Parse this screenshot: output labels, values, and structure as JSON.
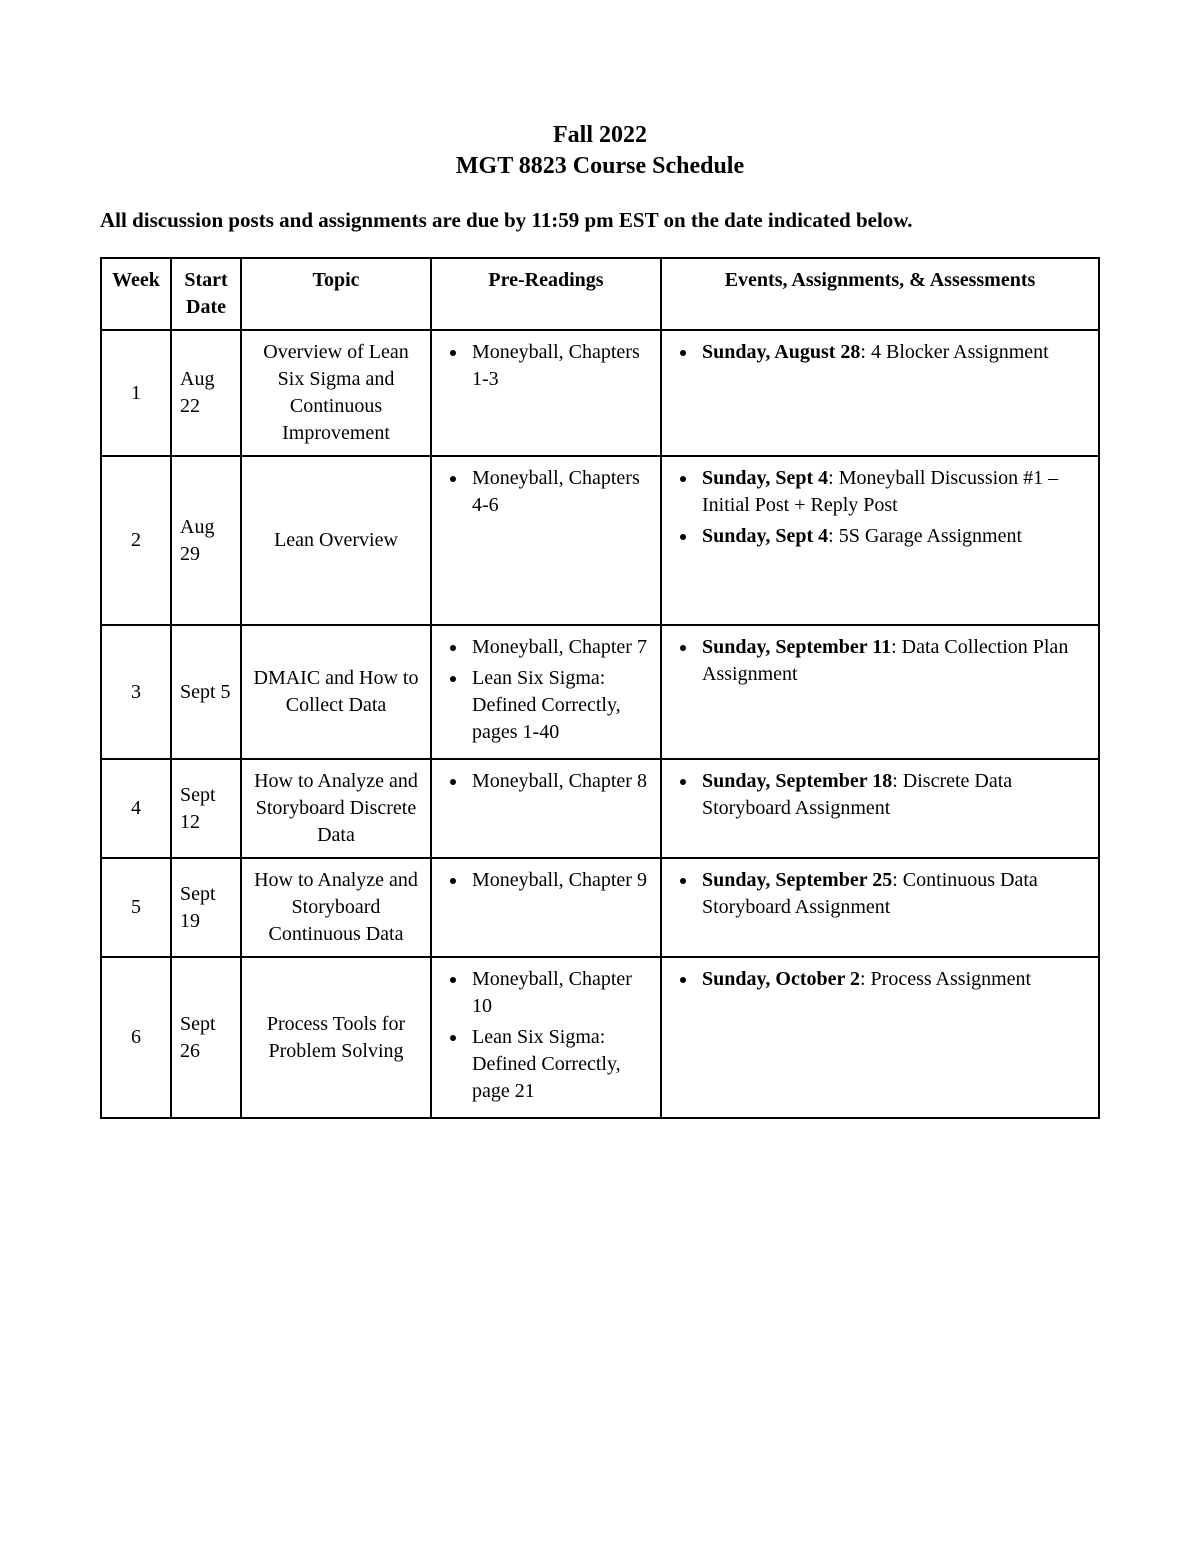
{
  "header": {
    "line1": "Fall 2022",
    "line2": "MGT 8823 Course Schedule"
  },
  "subtitle": "All discussion posts and assignments are due by 11:59 pm EST on the date indicated below.",
  "table": {
    "columns": [
      "Week",
      "Start Date",
      "Topic",
      "Pre-Readings",
      "Events, Assignments, & Assessments"
    ],
    "rows": [
      {
        "week": "1",
        "date": "Aug 22",
        "topic": "Overview of Lean Six Sigma and Continuous Improvement",
        "readings": [
          "Moneyball, Chapters 1-3"
        ],
        "events": [
          {
            "bold": "Sunday, August 28",
            "rest": ":  4 Blocker Assignment"
          }
        ]
      },
      {
        "week": "2",
        "date": "Aug 29",
        "topic": "Lean Overview",
        "readings": [
          "Moneyball, Chapters 4-6"
        ],
        "events": [
          {
            "bold": "Sunday, Sept 4",
            "rest": ":  Moneyball Discussion #1 – Initial Post + Reply Post"
          },
          {
            "bold": "Sunday, Sept 4",
            "rest": ":  5S Garage Assignment"
          }
        ],
        "extra_padding": true
      },
      {
        "week": "3",
        "date": "Sept 5",
        "topic": "DMAIC and How to Collect Data",
        "readings": [
          "Moneyball, Chapter 7",
          "Lean Six Sigma: Defined Correctly, pages 1-40"
        ],
        "events": [
          {
            "bold": "Sunday, September 11",
            "rest": ":  Data Collection Plan Assignment"
          }
        ]
      },
      {
        "week": "4",
        "date": "Sept 12",
        "topic": "How to Analyze and Storyboard Discrete Data",
        "readings": [
          "Moneyball, Chapter 8"
        ],
        "events": [
          {
            "bold": "Sunday, September 18",
            "rest": ":  Discrete Data Storyboard Assignment"
          }
        ]
      },
      {
        "week": "5",
        "date": "Sept 19",
        "topic": "How to Analyze and Storyboard Continuous Data",
        "readings": [
          "Moneyball, Chapter 9"
        ],
        "events": [
          {
            "bold": "Sunday, September 25",
            "rest": ":  Continuous Data Storyboard Assignment"
          }
        ]
      },
      {
        "week": "6",
        "date": "Sept 26",
        "topic": "Process Tools for Problem Solving",
        "readings": [
          "Moneyball, Chapter 10",
          "Lean Six Sigma: Defined Correctly, page 21"
        ],
        "events": [
          {
            "bold": "Sunday, October 2",
            "rest": ":  Process Assignment"
          }
        ]
      }
    ]
  }
}
